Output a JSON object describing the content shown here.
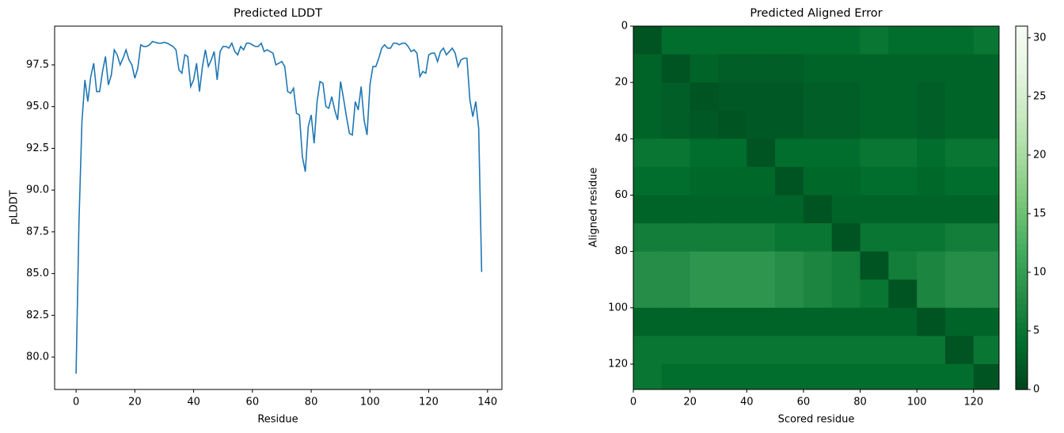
{
  "chart_data": [
    {
      "type": "line",
      "title": "Predicted LDDT",
      "x_label": "Residue",
      "y_label": "pLDDT",
      "x": [
        0,
        1,
        2,
        3,
        4,
        5,
        6,
        7,
        8,
        9,
        10,
        11,
        12,
        13,
        14,
        15,
        16,
        17,
        18,
        19,
        20,
        21,
        22,
        23,
        24,
        25,
        26,
        27,
        28,
        29,
        30,
        31,
        32,
        33,
        34,
        35,
        36,
        37,
        38,
        39,
        40,
        41,
        42,
        43,
        44,
        45,
        46,
        47,
        48,
        49,
        50,
        51,
        52,
        53,
        54,
        55,
        56,
        57,
        58,
        59,
        60,
        61,
        62,
        63,
        64,
        65,
        66,
        67,
        68,
        69,
        70,
        71,
        72,
        73,
        74,
        75,
        76,
        77,
        78,
        79,
        80,
        81,
        82,
        83,
        84,
        85,
        86,
        87,
        88,
        89,
        90,
        91,
        92,
        93,
        94,
        95,
        96,
        97,
        98,
        99,
        100,
        101,
        102,
        103,
        104,
        105,
        106,
        107,
        108,
        109,
        110,
        111,
        112,
        113,
        114,
        115,
        116,
        117,
        118,
        119,
        120,
        121,
        122,
        123,
        124,
        125,
        126,
        127,
        128,
        129,
        130,
        131,
        132,
        133,
        134,
        135,
        136,
        137,
        138
      ],
      "series": [
        {
          "name": "pLDDT",
          "color": "#1f77b4",
          "values": [
            79.0,
            88.2,
            94.1,
            96.6,
            95.3,
            96.8,
            97.6,
            95.9,
            95.9,
            97.1,
            98.0,
            96.3,
            96.9,
            98.4,
            98.1,
            97.5,
            97.9,
            98.4,
            97.8,
            97.5,
            96.7,
            97.3,
            98.7,
            98.6,
            98.6,
            98.7,
            98.9,
            98.85,
            98.8,
            98.8,
            98.85,
            98.8,
            98.7,
            98.6,
            98.4,
            97.2,
            97.0,
            98.1,
            98.0,
            96.2,
            96.6,
            97.6,
            95.9,
            97.4,
            98.4,
            97.4,
            97.8,
            98.3,
            96.6,
            98.3,
            98.6,
            98.6,
            98.5,
            98.8,
            98.3,
            98.1,
            98.6,
            98.4,
            98.8,
            98.8,
            98.7,
            98.6,
            98.6,
            98.8,
            98.3,
            98.4,
            98.3,
            98.2,
            97.5,
            97.6,
            97.7,
            97.4,
            95.9,
            95.8,
            96.1,
            94.6,
            94.5,
            92.0,
            91.1,
            93.8,
            94.5,
            92.8,
            95.3,
            96.5,
            96.4,
            95.0,
            94.9,
            95.6,
            94.8,
            94.2,
            96.5,
            95.5,
            94.4,
            93.4,
            93.3,
            95.3,
            94.8,
            96.2,
            94.2,
            93.3,
            96.3,
            97.4,
            97.4,
            97.9,
            98.5,
            98.7,
            98.5,
            98.5,
            98.8,
            98.8,
            98.7,
            98.8,
            98.8,
            98.6,
            98.3,
            98.4,
            98.2,
            96.8,
            97.1,
            97.0,
            98.1,
            98.2,
            98.2,
            97.7,
            98.3,
            98.5,
            98.1,
            98.3,
            98.5,
            98.2,
            97.4,
            97.8,
            97.9,
            97.9,
            95.4,
            94.4,
            95.3,
            93.7,
            85.1
          ]
        }
      ],
      "xlim": [
        -7.3,
        144.9
      ],
      "ylim": [
        78.06,
        99.82
      ],
      "xticks": [
        0,
        20,
        40,
        60,
        80,
        100,
        120,
        140
      ],
      "yticks": [
        {
          "value": 80,
          "label": "80.0"
        },
        82.5,
        {
          "value": 85,
          "label": "85.0"
        },
        87.5,
        {
          "value": 90,
          "label": "90.0"
        },
        92.5,
        {
          "value": 95,
          "label": "95.0"
        },
        97.5
      ]
    },
    {
      "type": "heatmap",
      "title": "Predicted Aligned Error",
      "x_label": "Scored residue",
      "y_label": "Aligned residue",
      "x_edges": [
        0,
        10,
        20,
        30,
        40,
        50,
        60,
        70,
        80,
        90,
        100,
        110,
        120,
        129
      ],
      "y_edges": [
        0,
        10,
        20,
        30,
        40,
        50,
        60,
        70,
        80,
        90,
        100,
        110,
        120,
        129
      ],
      "z": [
        [
          1.5,
          4,
          4,
          4,
          4,
          4,
          4,
          4,
          5,
          4,
          4,
          4,
          5
        ],
        [
          3,
          1.5,
          3,
          2.5,
          2.5,
          2.5,
          3,
          3,
          3,
          3,
          3,
          3,
          3
        ],
        [
          3,
          2.5,
          1.5,
          2,
          2,
          2,
          2.5,
          2.5,
          3,
          3,
          2.5,
          3,
          3
        ],
        [
          3,
          2.5,
          2,
          1.5,
          2,
          2,
          2.5,
          2.5,
          3,
          3,
          2.5,
          3,
          3
        ],
        [
          5,
          5,
          4,
          4,
          1.5,
          4,
          4,
          4,
          5,
          5,
          4,
          5,
          5
        ],
        [
          4,
          4,
          3.5,
          3.5,
          3.5,
          1.5,
          3.5,
          3.5,
          4,
          4,
          3.5,
          4,
          4
        ],
        [
          3,
          3,
          3,
          3,
          3,
          3,
          1.5,
          3,
          3,
          3,
          3,
          3,
          3
        ],
        [
          6,
          6,
          6,
          6,
          6,
          5,
          5,
          1.5,
          5,
          5,
          5,
          6,
          6
        ],
        [
          8,
          8,
          9,
          9,
          9,
          8,
          7,
          6,
          1.5,
          6,
          7,
          8,
          8
        ],
        [
          8,
          8,
          9,
          9,
          9,
          8,
          7,
          6,
          5,
          1.5,
          7,
          8,
          8
        ],
        [
          3,
          3,
          3,
          3,
          3,
          3,
          3,
          3,
          3,
          3,
          1.5,
          3,
          3
        ],
        [
          5,
          5,
          5,
          5,
          5,
          5,
          5,
          5,
          5,
          5,
          5,
          1.5,
          5
        ],
        [
          5,
          4,
          4,
          4,
          4,
          4,
          4,
          4,
          4,
          4,
          4,
          4,
          1.5
        ]
      ],
      "xlim": [
        0,
        129
      ],
      "ylim": [
        129,
        0
      ],
      "xticks": [
        0,
        20,
        40,
        60,
        80,
        100,
        120
      ],
      "yticks": [
        0,
        20,
        40,
        60,
        80,
        100,
        120
      ],
      "colormap": [
        "#00441b",
        "#006d2c",
        "#238b45",
        "#41ab5d",
        "#74c476",
        "#a1d99b",
        "#c7e9c0",
        "#e5f5e0",
        "#f7fcf5"
      ],
      "clim": [
        0,
        31
      ],
      "cticks": [
        0,
        5,
        10,
        15,
        20,
        25,
        30
      ]
    }
  ]
}
